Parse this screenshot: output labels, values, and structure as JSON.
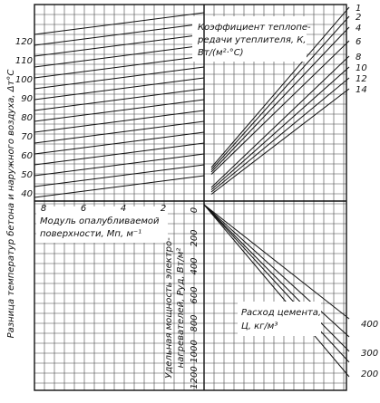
{
  "axis_title": "Разница температур бетона и наружного воздуха, Δт°С",
  "temperature_ticks": [
    "40",
    "50",
    "60",
    "70",
    "80",
    "90",
    "100",
    "110",
    "120"
  ],
  "modulus": {
    "label_lines": [
      "Модуль опалубливаемой",
      "поверхности, Мп, м⁻¹"
    ],
    "ticks": [
      "8",
      "6",
      "4",
      "2"
    ]
  },
  "heat_transfer": {
    "label_lines": [
      "Коэффициент теплопе-",
      "редачи утеплителя, К,",
      "Вт/(м²·°С)"
    ],
    "ticks": [
      "1",
      "2",
      "4",
      "6",
      "8",
      "10",
      "12",
      "14"
    ]
  },
  "power": {
    "label_lines": [
      "Удельная мощность электро-",
      "нагревателей, Руд, Вт/м²"
    ],
    "ticks": [
      "0",
      "200",
      "400",
      "600",
      "800",
      "1000",
      "1200"
    ]
  },
  "cement": {
    "label_lines": [
      "Расход цемента,",
      "Ц, кг/м³"
    ],
    "ticks": [
      "400",
      "300",
      "200"
    ]
  }
}
